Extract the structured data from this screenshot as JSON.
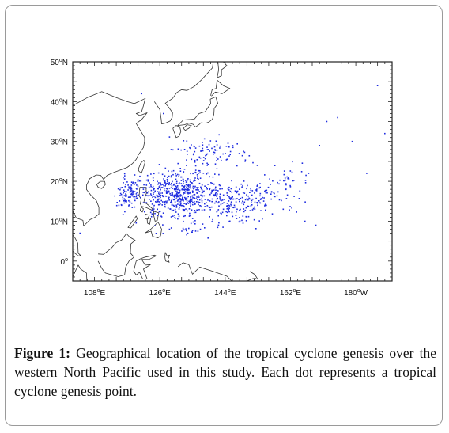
{
  "map": {
    "lat_labels": [
      {
        "deg": "50",
        "hem": "N"
      },
      {
        "deg": "40",
        "hem": "N"
      },
      {
        "deg": "30",
        "hem": "N"
      },
      {
        "deg": "20",
        "hem": "N"
      },
      {
        "deg": "10",
        "hem": "N"
      },
      {
        "deg": "0",
        "hem": ""
      }
    ],
    "lon_labels": [
      {
        "deg": "108",
        "hem": "E"
      },
      {
        "deg": "126",
        "hem": "E"
      },
      {
        "deg": "144",
        "hem": "E"
      },
      {
        "deg": "162",
        "hem": "E"
      },
      {
        "deg": "180",
        "hem": "W"
      }
    ],
    "lat_range": [
      -5,
      50
    ],
    "lon_range": [
      102,
      190
    ],
    "marker_color": "#1f2de0",
    "coastline_color": "#333333"
  },
  "caption": {
    "label": "Figure 1:",
    "text": " Geographical location of the tropical cyclone genesis over the western North Pacific used in this study. Each dot represents a tropical cyclone genesis point."
  }
}
